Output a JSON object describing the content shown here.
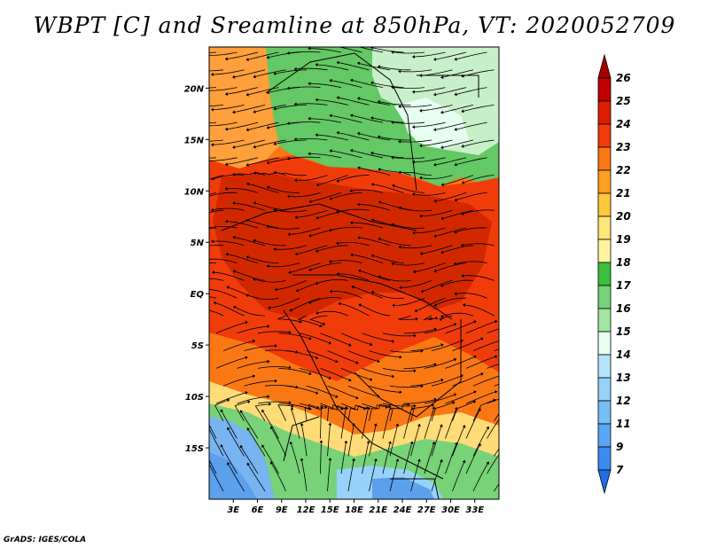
{
  "title": "WBPT [C] and Sreamline at 850hPa, VT: 2020052709",
  "credit": "GrADS: IGES/COLA",
  "map": {
    "field": "WBPT [C]",
    "level": "850hPa",
    "valid_time": "2020052709",
    "overlay": "Streamline",
    "lon_range": [
      0,
      36
    ],
    "lat_range": [
      -20,
      24
    ],
    "lat_ticks": [
      {
        "value": 20,
        "label": "20N"
      },
      {
        "value": 15,
        "label": "15N"
      },
      {
        "value": 10,
        "label": "10N"
      },
      {
        "value": 5,
        "label": "5N"
      },
      {
        "value": 0,
        "label": "EQ"
      },
      {
        "value": -5,
        "label": "5S"
      },
      {
        "value": -10,
        "label": "10S"
      },
      {
        "value": -15,
        "label": "15S"
      }
    ],
    "lon_ticks": [
      {
        "value": 3,
        "label": "3E"
      },
      {
        "value": 6,
        "label": "6E"
      },
      {
        "value": 9,
        "label": "9E"
      },
      {
        "value": 12,
        "label": "12E"
      },
      {
        "value": 15,
        "label": "15E"
      },
      {
        "value": 18,
        "label": "18E"
      },
      {
        "value": 21,
        "label": "21E"
      },
      {
        "value": 24,
        "label": "24E"
      },
      {
        "value": 27,
        "label": "27E"
      },
      {
        "value": 30,
        "label": "30E"
      },
      {
        "value": 33,
        "label": "33E"
      }
    ]
  },
  "colorbar": {
    "levels": [
      "7",
      "9",
      "11",
      "12",
      "13",
      "14",
      "15",
      "16",
      "17",
      "18",
      "19",
      "20",
      "21",
      "22",
      "23",
      "24",
      "25",
      "26"
    ],
    "colors": [
      "#1e6ee6",
      "#3c8cf0",
      "#5aa5f5",
      "#78bef5",
      "#96d2fa",
      "#b4e6fa",
      "#e6fff0",
      "#a0e6a0",
      "#78d278",
      "#3cbe3c",
      "#fff5a0",
      "#ffe678",
      "#ffc83c",
      "#ffa01e",
      "#fa7814",
      "#f03c0a",
      "#dc1e00",
      "#c00000",
      "#a50000"
    ]
  },
  "regions": {
    "north_green": "#64c864",
    "north_light": "#c8f0c8",
    "west_orange": "#ffa03c",
    "central_red": "#f03c0a",
    "core_dark": "#d22800",
    "south_orange": "#fa7814",
    "south_yellow": "#ffdc78",
    "south_green": "#78d278",
    "southwest_blue": "#78b4f0",
    "southeast_blue": "#5aa0eb"
  }
}
